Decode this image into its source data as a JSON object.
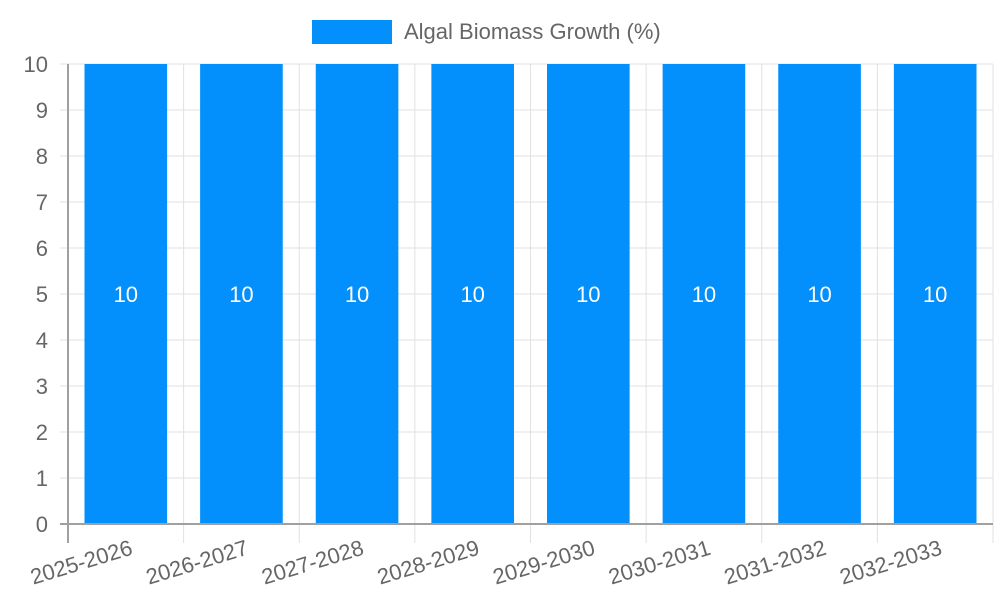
{
  "legend": {
    "label": "Algal Biomass Growth (%)",
    "color": "#038ffc"
  },
  "chart_data": {
    "type": "bar",
    "title": "",
    "xlabel": "",
    "ylabel": "",
    "categories": [
      "2025-2026",
      "2026-2027",
      "2027-2028",
      "2028-2029",
      "2029-2030",
      "2030-2031",
      "2031-2032",
      "2032-2033"
    ],
    "series": [
      {
        "name": "Algal Biomass Growth (%)",
        "values": [
          10,
          10,
          10,
          10,
          10,
          10,
          10,
          10
        ],
        "color": "#038ffc"
      }
    ],
    "ylim": [
      0,
      10
    ],
    "yticks": [
      0,
      1,
      2,
      3,
      4,
      5,
      6,
      7,
      8,
      9,
      10
    ],
    "grid": true,
    "legend_position": "top",
    "data_labels": true
  },
  "colors": {
    "grid": "#e1e1e1",
    "axis": "#a0a0a0",
    "tick_text": "#666666",
    "bar_label": "#ffffff"
  }
}
